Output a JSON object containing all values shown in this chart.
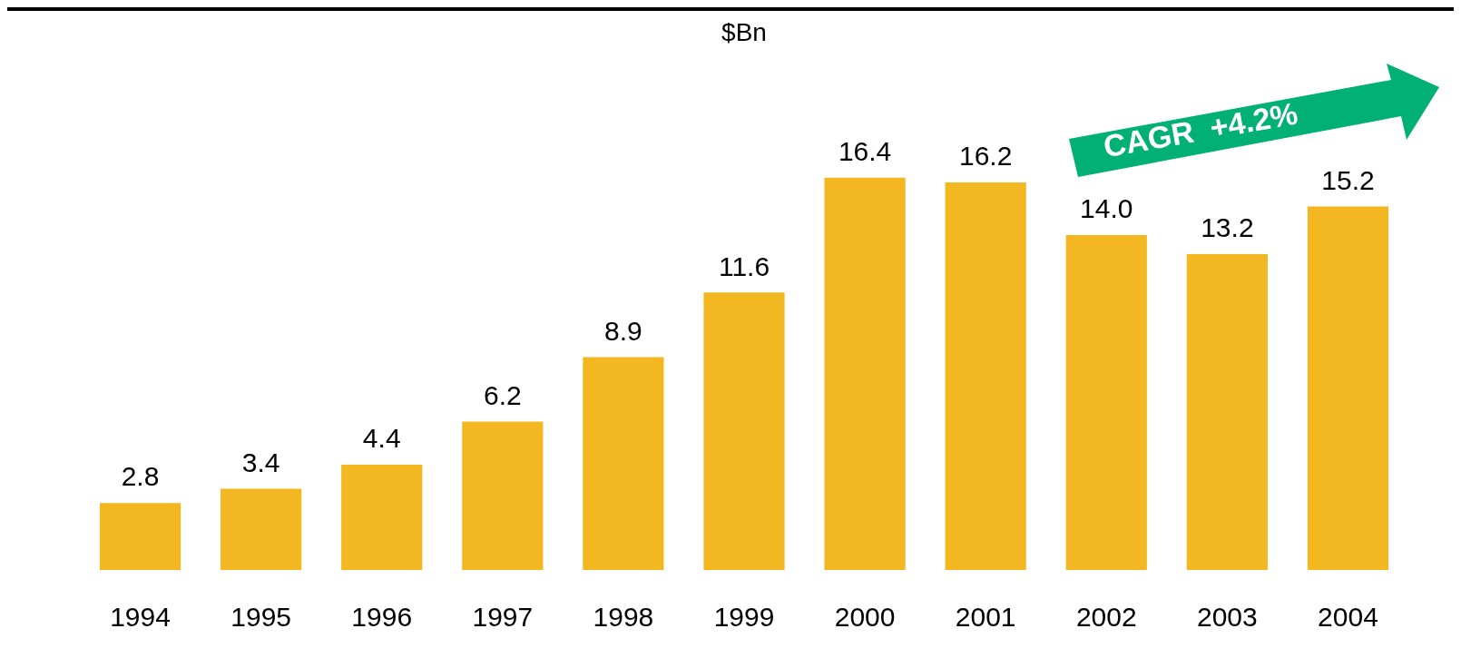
{
  "chart_data": {
    "type": "bar",
    "title": "$Bn",
    "categories": [
      "1994",
      "1995",
      "1996",
      "1997",
      "1998",
      "1999",
      "2000",
      "2001",
      "2002",
      "2003",
      "2004"
    ],
    "values": [
      2.8,
      3.4,
      4.4,
      6.2,
      8.9,
      11.6,
      16.4,
      16.2,
      14.0,
      13.2,
      15.2
    ],
    "value_labels": [
      "2.8",
      "3.4",
      "4.4",
      "6.2",
      "8.9",
      "11.6",
      "16.4",
      "16.2",
      "14.0",
      "13.2",
      "15.2"
    ],
    "color": "#f2b721",
    "annotations": [
      "CAGR  +4.2%"
    ]
  }
}
